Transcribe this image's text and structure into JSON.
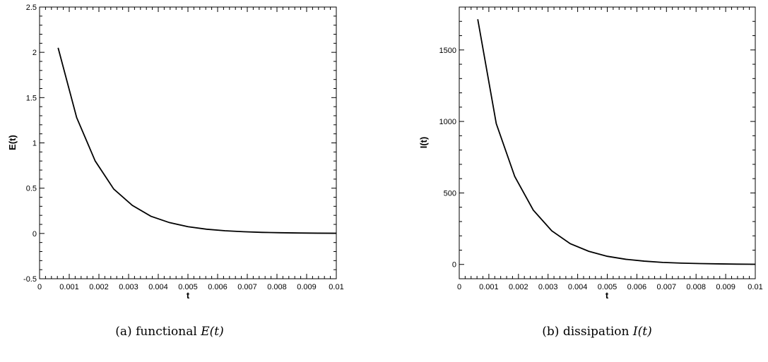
{
  "chart_data": [
    {
      "type": "line",
      "xlabel": "t",
      "ylabel": "E(t)",
      "xlim": [
        0,
        0.01
      ],
      "ylim": [
        -0.5,
        2.5
      ],
      "xticks": [
        "0",
        "0.001",
        "0.002",
        "0.003",
        "0.004",
        "0.005",
        "0.006",
        "0.007",
        "0.008",
        "0.009",
        "0.01"
      ],
      "yticks": [
        "-0.5",
        "0",
        "0.5",
        "1",
        "1.5",
        "2",
        "2.5"
      ],
      "grid": false,
      "caption_prefix": "(a) functional ",
      "caption_math": "E(t)",
      "series": [
        {
          "x": [
            0.000625,
            0.00125,
            0.001875,
            0.0025,
            0.003125,
            0.00375,
            0.004375,
            0.005,
            0.005625,
            0.00625,
            0.006875,
            0.0075,
            0.008125,
            0.00875,
            0.009375,
            0.01
          ],
          "y": [
            2.05,
            1.28,
            0.8,
            0.49,
            0.31,
            0.19,
            0.12,
            0.075,
            0.047,
            0.03,
            0.019,
            0.012,
            0.008,
            0.005,
            0.003,
            0.002
          ]
        }
      ]
    },
    {
      "type": "line",
      "xlabel": "t",
      "ylabel": "I(t)",
      "xlim": [
        0,
        0.01
      ],
      "ylim": [
        -100,
        1800
      ],
      "xticks": [
        "0",
        "0.001",
        "0.002",
        "0.003",
        "0.004",
        "0.005",
        "0.006",
        "0.007",
        "0.008",
        "0.009",
        "0.01"
      ],
      "yticks": [
        "0",
        "500",
        "1000",
        "1500"
      ],
      "grid": false,
      "caption_prefix": "(b) dissipation ",
      "caption_math": "I(t)",
      "series": [
        {
          "x": [
            0.000625,
            0.00125,
            0.001875,
            0.0025,
            0.003125,
            0.00375,
            0.004375,
            0.005,
            0.005625,
            0.00625,
            0.006875,
            0.0075,
            0.008125,
            0.00875,
            0.009375,
            0.01
          ],
          "y": [
            1715,
            985,
            615,
            380,
            235,
            145,
            92,
            57,
            36,
            23,
            14,
            9,
            6,
            4,
            2,
            1
          ]
        }
      ]
    }
  ]
}
